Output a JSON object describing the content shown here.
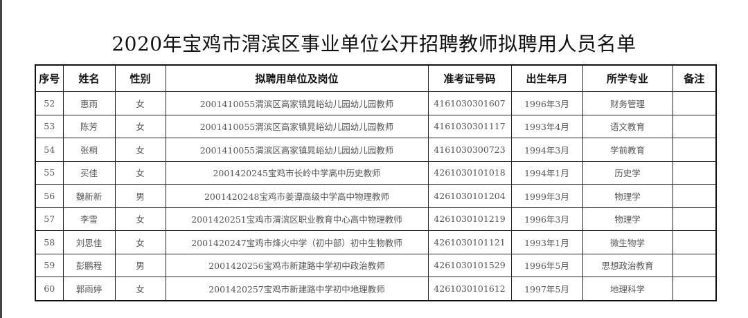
{
  "title": "2020年宝鸡市渭滨区事业单位公开招聘教师拟聘用人员名单",
  "headers": [
    "序号",
    "姓名",
    "性别",
    "拟聘用单位及岗位",
    "准考证号码",
    "出生年月",
    "所学专业",
    "备注"
  ],
  "rows": [
    [
      "52",
      "惠雨",
      "女",
      "2001410055渭滨区高家镇晁峪幼儿园幼儿园教师",
      "4161030301607",
      "1996年3月",
      "财务管理",
      ""
    ],
    [
      "53",
      "陈芳",
      "女",
      "2001410055渭滨区高家镇晁峪幼儿园幼儿园教师",
      "4161030301117",
      "1993年4月",
      "语文教育",
      ""
    ],
    [
      "54",
      "张桐",
      "女",
      "2001410055渭滨区高家镇晁峪幼儿园幼儿园教师",
      "4161030300723",
      "1994年3月",
      "学前教育",
      ""
    ],
    [
      "55",
      "买佳",
      "女",
      "2001420245宝鸡市长岭中学高中历史教师",
      "4261030101018",
      "1994年1月",
      "历史学",
      ""
    ],
    [
      "56",
      "魏新新",
      "男",
      "2001420248宝鸡市姜谭高级中学高中物理教师",
      "4261030101204",
      "1999年3月",
      "物理学",
      ""
    ],
    [
      "57",
      "李雪",
      "女",
      "2001420251宝鸡市渭滨区职业教育中心高中物理教师",
      "4261030101219",
      "1996年3月",
      "物理学",
      ""
    ],
    [
      "58",
      "刘思佳",
      "女",
      "2001420247宝鸡市烽火中学（初中部）初中生物教师",
      "4261030101121",
      "1993年1月",
      "微生物学",
      ""
    ],
    [
      "59",
      "彭鹏程",
      "男",
      "2001420256宝鸡市新建路中学初中政治教师",
      "4261030101529",
      "1996年5月",
      "思想政治教育",
      ""
    ],
    [
      "60",
      "郭雨婷",
      "女",
      "2001420257宝鸡市新建路中学初中地理教师",
      "4261030101612",
      "1997年5月",
      "地理科学",
      ""
    ]
  ]
}
